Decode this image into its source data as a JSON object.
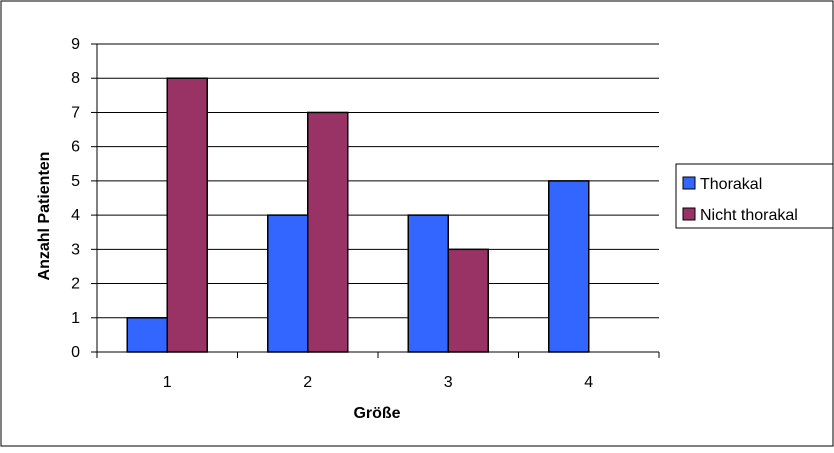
{
  "chart_data": {
    "type": "bar",
    "categories": [
      "1",
      "2",
      "3",
      "4"
    ],
    "series": [
      {
        "name": "Thorakal",
        "color": "#3366FF",
        "values": [
          1,
          4,
          4,
          5
        ]
      },
      {
        "name": "Nicht thorakal",
        "color": "#993366",
        "values": [
          8,
          7,
          3,
          0
        ]
      }
    ],
    "xlabel": "Größe",
    "ylabel": "Anzahl Patienten",
    "ylim": [
      0,
      9
    ],
    "yticks": [
      "0",
      "1",
      "2",
      "3",
      "4",
      "5",
      "6",
      "7",
      "8",
      "9"
    ],
    "grid": true,
    "legend_position": "right"
  }
}
